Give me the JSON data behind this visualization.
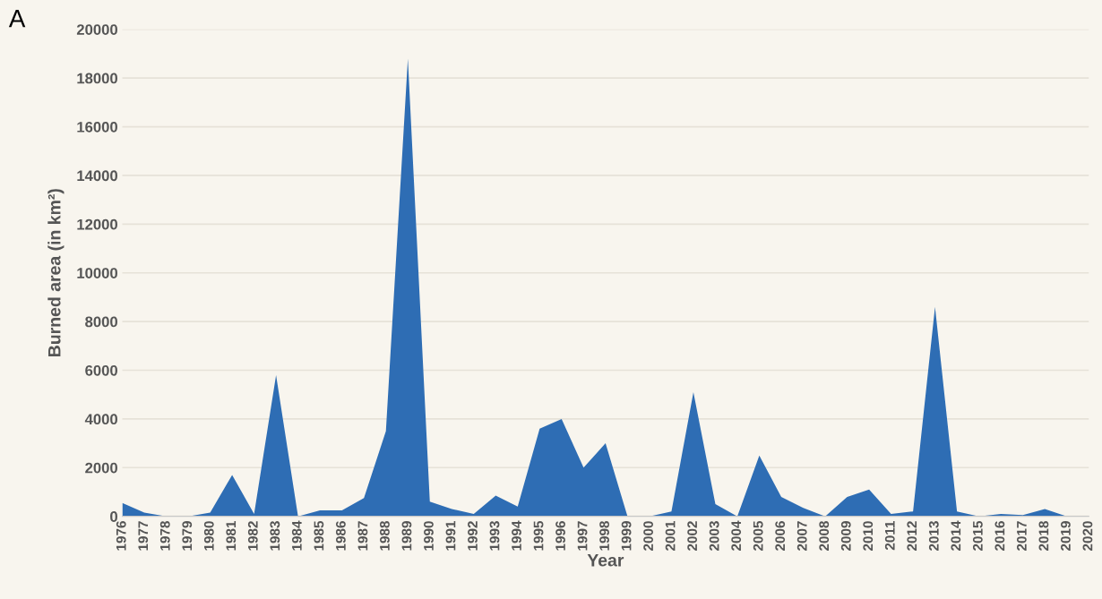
{
  "chart_data": {
    "type": "area",
    "xlabel": "Year",
    "ylabel": "Burned area (in km²)",
    "annotations": [
      "A"
    ],
    "categories": [
      "1976",
      "1977",
      "1978",
      "1979",
      "1980",
      "1981",
      "1982",
      "1983",
      "1984",
      "1985",
      "1986",
      "1987",
      "1988",
      "1989",
      "1990",
      "1991",
      "1992",
      "1993",
      "1994",
      "1995",
      "1996",
      "1997",
      "1998",
      "1999",
      "2000",
      "2001",
      "2002",
      "2003",
      "2004",
      "2005",
      "2006",
      "2007",
      "2008",
      "2009",
      "2010",
      "2011",
      "2012",
      "2013",
      "2014",
      "2015",
      "2016",
      "2017",
      "2018",
      "2019",
      "2020"
    ],
    "series": [
      {
        "color": "#2e6db4",
        "values": [
          550,
          150,
          0,
          0,
          150,
          1700,
          100,
          5800,
          0,
          250,
          250,
          750,
          3500,
          18800,
          600,
          300,
          100,
          850,
          400,
          3600,
          4000,
          2000,
          3000,
          0,
          0,
          200,
          5100,
          500,
          0,
          2500,
          800,
          350,
          0,
          800,
          1100,
          100,
          200,
          8600,
          200,
          0,
          100,
          50,
          300,
          0,
          0
        ]
      }
    ],
    "ylim": [
      0,
      20000
    ],
    "yticks": [
      0,
      2000,
      4000,
      6000,
      8000,
      10000,
      12000,
      14000,
      16000,
      18000,
      20000
    ],
    "grid": "y",
    "legend": false
  }
}
